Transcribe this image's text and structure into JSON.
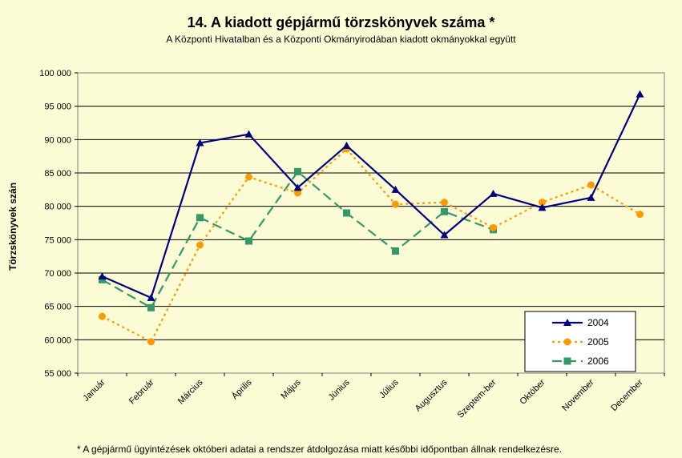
{
  "chart_data": {
    "type": "line",
    "title": "14. A  kiadott gépjármű  törzskönyvek száma *",
    "subtitle": "A Központi Hivatalban és a Központi Okmányirodában kiadott okmányokkal együtt",
    "ylabel": "Törzskönyvek szán",
    "xlabel": "",
    "categories": [
      "Január",
      "Február",
      "Március",
      "Április",
      "Május",
      "Június",
      "Július",
      "Augusztus",
      "Szeptem-ber",
      "Október",
      "November",
      "December"
    ],
    "ylim": [
      55000,
      100000
    ],
    "ytick_step": 5000,
    "ytick_labels": [
      "55 000",
      "60 000",
      "65 000",
      "70 000",
      "75 000",
      "80 000",
      "85 000",
      "90 000",
      "95 000",
      "100 000"
    ],
    "grid": true,
    "legend_position": "bottom-right",
    "series": [
      {
        "name": "2004",
        "color": "#000080",
        "marker": "triangle",
        "dash": "solid",
        "values": [
          69500,
          66300,
          89500,
          90800,
          82800,
          89100,
          82500,
          75700,
          81900,
          79800,
          81300,
          96800
        ]
      },
      {
        "name": "2005",
        "color": "#ff9900",
        "marker": "circle",
        "dash": "dotted",
        "values": [
          63500,
          59700,
          74200,
          84400,
          82000,
          88600,
          80300,
          80600,
          76800,
          80600,
          83200,
          78800
        ]
      },
      {
        "name": "2006",
        "color": "#339966",
        "marker": "square",
        "dash": "dashed",
        "values": [
          69000,
          64800,
          78300,
          74800,
          85200,
          79000,
          73300,
          79200,
          76500,
          null,
          null,
          null
        ]
      }
    ],
    "footnote": "* A gépjármű ügyintézések októberi adatai a rendszer átdolgozása miatt későbbi időpontban állnak rendelkezésre."
  }
}
